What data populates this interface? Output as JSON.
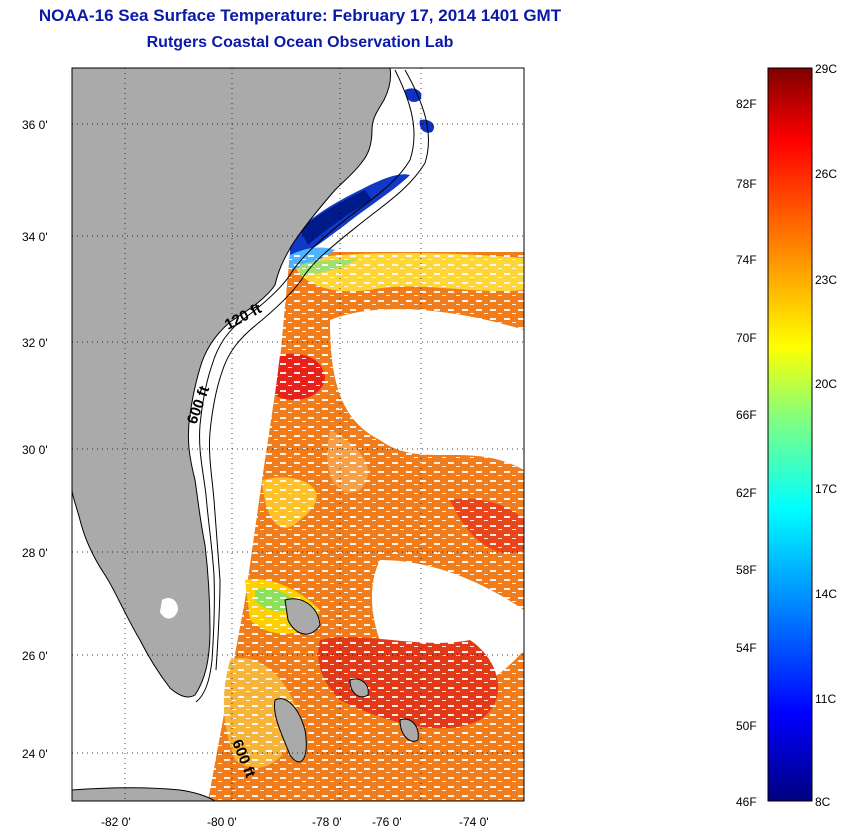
{
  "title": "NOAA-16 Sea Surface Temperature:  February 17, 2014 1401 GMT",
  "subtitle": "Rutgers Coastal Ocean Observation Lab",
  "lat_labels": [
    "36 0'",
    "34 0'",
    "32 0'",
    "30 0'",
    "28 0'",
    "26 0'",
    "24 0'"
  ],
  "lon_labels": [
    "-82 0'",
    "-80 0'",
    "-78 0'",
    "-76 0'",
    "-74 0'"
  ],
  "contour_labels": [
    "120 ft",
    "600 ft",
    "600 ft"
  ],
  "colorbar": {
    "fahrenheit": [
      "82F",
      "78F",
      "74F",
      "70F",
      "66F",
      "62F",
      "58F",
      "54F",
      "50F",
      "46F"
    ],
    "celsius": [
      "29C",
      "26C",
      "23C",
      "20C",
      "17C",
      "14C",
      "11C",
      "8C"
    ],
    "range_c": [
      8,
      29
    ],
    "stops": [
      "#000080",
      "#0000ff",
      "#0080ff",
      "#00ffff",
      "#80ff80",
      "#ffff00",
      "#ff8000",
      "#ff0000",
      "#800000"
    ]
  },
  "colors": {
    "title": "#0a1aa8",
    "land": "#aaaaaa",
    "warm_sst": "#f07f1d",
    "cold_sst": "#1030c0"
  }
}
